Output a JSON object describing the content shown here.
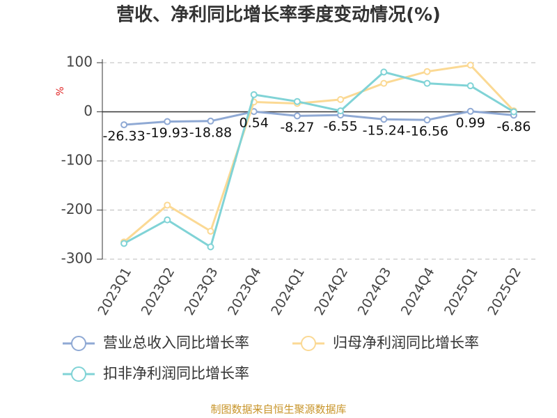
{
  "chart_data": {
    "type": "line",
    "title": "营收、净利同比增长率季度变动情况(%)",
    "y_label": "%",
    "source": "制图数据来自恒生聚源数据库",
    "categories": [
      "2023Q1",
      "2023Q2",
      "2023Q3",
      "2023Q4",
      "2024Q1",
      "2024Q2",
      "2024Q3",
      "2024Q4",
      "2025Q1",
      "2025Q2"
    ],
    "series": [
      {
        "name": "营业总收入同比增长率",
        "color": "#8fa9d4",
        "show_labels": true,
        "values": [
          -26.33,
          -19.93,
          -18.88,
          0.54,
          -8.27,
          -6.55,
          -15.24,
          -16.56,
          0.99,
          -6.86
        ]
      },
      {
        "name": "归母净利润同比增长率",
        "color": "#fbd994",
        "show_labels": false,
        "values": [
          -265,
          -190,
          -243,
          20,
          17,
          25,
          58,
          82,
          95,
          2
        ]
      },
      {
        "name": "扣非净利润同比增长率",
        "color": "#80d3d6",
        "show_labels": false,
        "values": [
          -268,
          -220,
          -275,
          35,
          21,
          2,
          81,
          58,
          53,
          0
        ]
      }
    ],
    "ylim": [
      -300,
      100
    ],
    "yticks": [
      -300,
      -200,
      -100,
      0,
      100
    ],
    "grid": true
  }
}
